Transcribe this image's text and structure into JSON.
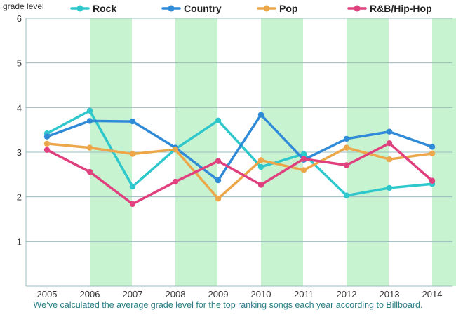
{
  "chart_data": {
    "type": "line",
    "ylabel": "grade level",
    "xlabel": "",
    "x": [
      "2005",
      "2006",
      "2007",
      "2008",
      "2009",
      "2010",
      "2011",
      "2012",
      "2013",
      "2014"
    ],
    "ylim": [
      0,
      6
    ],
    "yticks": [
      1,
      2,
      3,
      4,
      5,
      6
    ],
    "grid": "horizontal",
    "shaded_years": [
      "2006",
      "2008",
      "2010",
      "2012",
      "2014"
    ],
    "shade_color": "#c8f3d0",
    "legend_position": "top",
    "series": [
      {
        "name": "Rock",
        "color": "#2ec8cc",
        "values": [
          3.42,
          3.93,
          2.23,
          3.07,
          3.71,
          2.67,
          2.96,
          2.03,
          2.2,
          2.29
        ]
      },
      {
        "name": "Country",
        "color": "#2f8ad8",
        "values": [
          3.35,
          3.7,
          3.69,
          3.1,
          2.37,
          3.84,
          2.83,
          3.3,
          3.46,
          3.12
        ]
      },
      {
        "name": "Pop",
        "color": "#eba74a",
        "values": [
          3.19,
          3.1,
          2.96,
          3.06,
          1.96,
          2.82,
          2.6,
          3.1,
          2.84,
          2.97
        ]
      },
      {
        "name": "R&B/Hip-Hop",
        "color": "#e0407e",
        "values": [
          3.05,
          2.56,
          1.84,
          2.34,
          2.8,
          2.27,
          2.85,
          2.71,
          3.2,
          2.36
        ]
      }
    ],
    "caption": "We’ve calculated the average grade level for the top ranking songs each year according to Billboard."
  }
}
